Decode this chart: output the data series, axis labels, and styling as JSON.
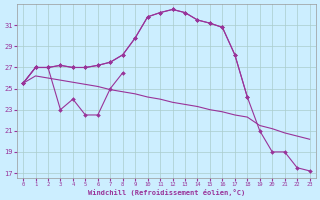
{
  "xlabel": "Windchill (Refroidissement éolien,°C)",
  "background_color": "#cceeff",
  "line_color": "#993399",
  "grid_color": "#aacccc",
  "xlim": [
    -0.5,
    23.5
  ],
  "ylim": [
    16.5,
    33
  ],
  "yticks": [
    17,
    19,
    21,
    23,
    25,
    27,
    29,
    31
  ],
  "xticks": [
    0,
    1,
    2,
    3,
    4,
    5,
    6,
    7,
    8,
    9,
    10,
    11,
    12,
    13,
    14,
    15,
    16,
    17,
    18,
    19,
    20,
    21,
    22,
    23
  ],
  "series1_x": [
    0,
    1,
    2,
    3,
    4,
    5,
    6,
    7,
    8
  ],
  "series1_y": [
    25.5,
    27.0,
    27.0,
    23.0,
    24.0,
    22.5,
    22.5,
    25.0,
    26.5
  ],
  "series2_x": [
    0,
    1,
    2,
    3,
    4,
    5,
    6,
    7,
    8,
    9,
    10,
    11,
    12,
    13,
    14,
    15,
    16,
    17,
    18
  ],
  "series2_y": [
    25.5,
    27.0,
    27.0,
    27.2,
    27.0,
    27.0,
    27.2,
    27.5,
    28.2,
    29.8,
    31.8,
    32.2,
    32.5,
    32.2,
    31.5,
    31.2,
    30.8,
    28.2,
    24.2
  ],
  "series3_x": [
    0,
    1,
    2,
    3,
    4,
    5,
    6,
    7,
    8,
    9,
    10,
    11,
    12,
    13,
    14,
    15,
    16,
    17,
    18,
    19,
    20,
    21,
    22,
    23
  ],
  "series3_y": [
    25.5,
    26.2,
    26.0,
    25.8,
    25.6,
    25.4,
    25.2,
    24.9,
    24.7,
    24.5,
    24.2,
    24.0,
    23.7,
    23.5,
    23.3,
    23.0,
    22.8,
    22.5,
    22.3,
    21.5,
    21.2,
    20.8,
    20.5,
    20.2
  ],
  "series4_x": [
    0,
    1,
    2,
    3,
    4,
    5,
    6,
    7,
    8,
    9,
    10,
    11,
    12,
    13,
    14,
    15,
    16,
    17,
    18,
    19,
    20,
    21,
    22,
    23
  ],
  "series4_y": [
    25.5,
    27.0,
    27.0,
    27.2,
    27.0,
    27.0,
    27.2,
    27.5,
    28.2,
    29.8,
    31.8,
    32.2,
    32.5,
    32.2,
    31.5,
    31.2,
    30.8,
    28.2,
    24.2,
    21.0,
    19.0,
    19.0,
    17.5,
    17.2
  ]
}
